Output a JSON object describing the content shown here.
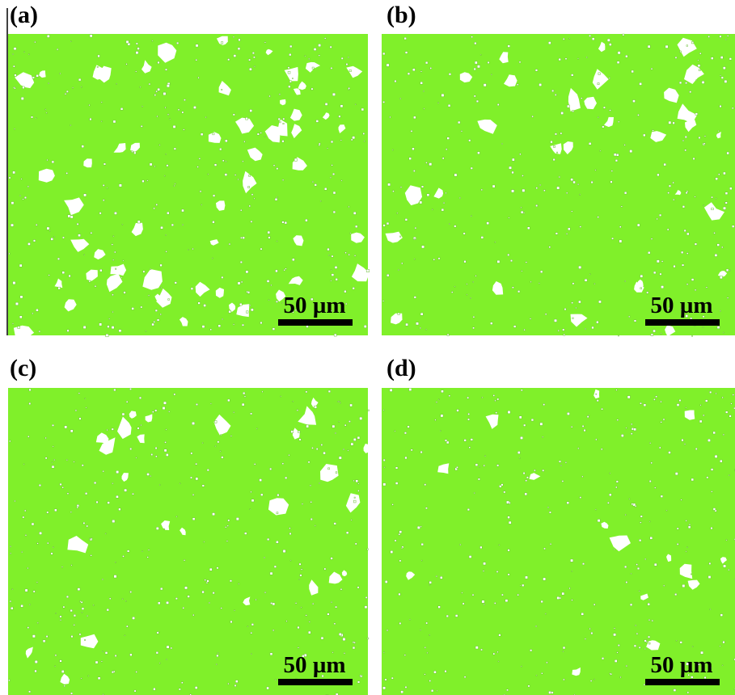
{
  "panels": [
    {
      "label": "(a)",
      "scale_bar": "50 µm"
    },
    {
      "label": "(b)",
      "scale_bar": "50 µm"
    },
    {
      "label": "(c)",
      "scale_bar": "50 µm"
    },
    {
      "label": "(d)",
      "scale_bar": "50 µm"
    }
  ]
}
